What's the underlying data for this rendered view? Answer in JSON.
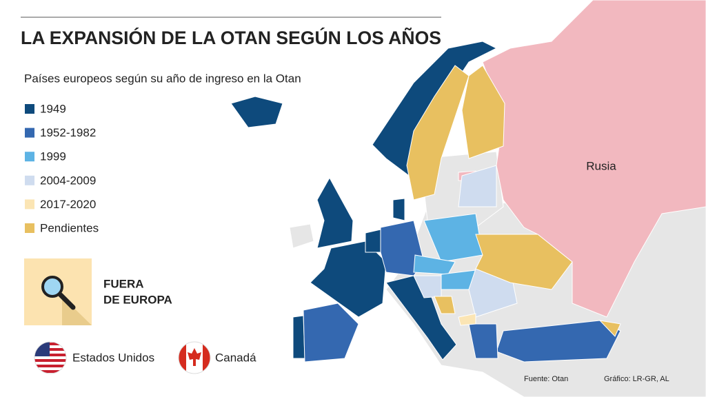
{
  "header": {
    "title": "LA EXPANSIÓN DE LA OTAN SEGÚN LOS AÑOS",
    "subtitle": "Países europeos según su año de ingreso en la Otan"
  },
  "legend": [
    {
      "label": "1949",
      "color": "#0e4a7c"
    },
    {
      "label": "1952-1982",
      "color": "#3468b0"
    },
    {
      "label": "1999",
      "color": "#5db3e4"
    },
    {
      "label": "2004-2009",
      "color": "#cfdcef"
    },
    {
      "label": "2017-2020",
      "color": "#fbe5b4"
    },
    {
      "label": "Pendientes",
      "color": "#e8c060"
    }
  ],
  "callout": {
    "lines": [
      "FUERA",
      "DE EUROPA"
    ]
  },
  "outside_europe": [
    {
      "label": "Estados Unidos"
    },
    {
      "label": "Canadá"
    }
  ],
  "map": {
    "labels": [
      "Rusia"
    ]
  },
  "footer": {
    "source": "Fuente: Otan",
    "credit": "Gráfico: LR-GR, AL"
  }
}
